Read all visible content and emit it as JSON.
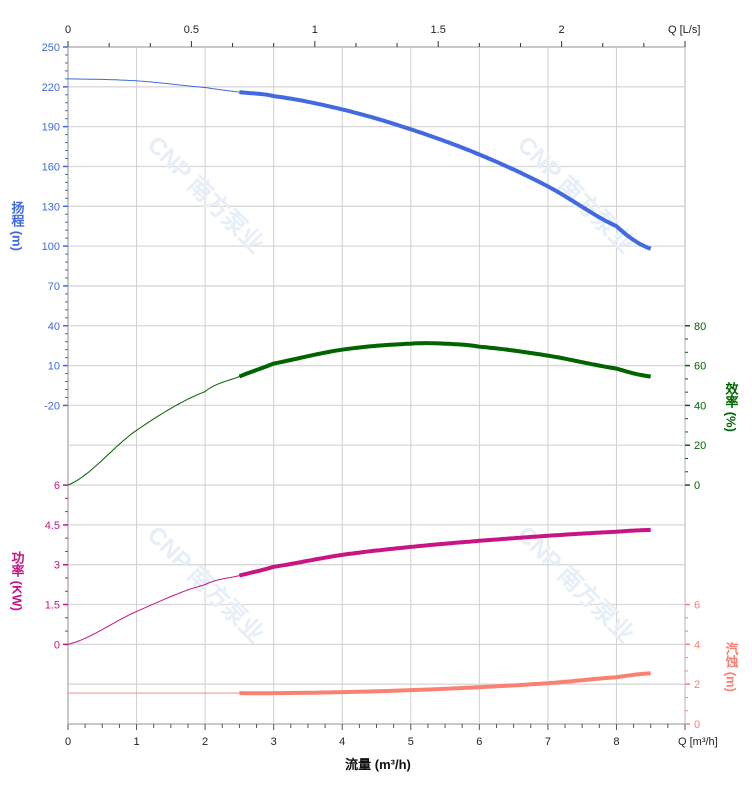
{
  "chart_data": {
    "type": "line",
    "title": "",
    "watermark": "CNP 南方泵业",
    "x": {
      "label": "流量 (m³/h)",
      "unit_label": "Q [m³/h]",
      "range": [
        0,
        9
      ],
      "ticks": [
        0,
        1,
        2,
        3,
        4,
        5,
        6,
        7,
        8
      ]
    },
    "x_top": {
      "unit_label": "Q [L/s]",
      "range": [
        0,
        2.5
      ],
      "ticks": [
        0,
        0.5,
        1,
        1.5,
        2
      ]
    },
    "grid": true,
    "axes": {
      "head": {
        "label": "扬程 (m)",
        "color": "#4169e1",
        "side": "left",
        "ticks": [
          250,
          220,
          190,
          160,
          130,
          100,
          70,
          40,
          10,
          -20
        ]
      },
      "power": {
        "label": "功率 (KW)",
        "color": "#c71585",
        "side": "left",
        "ticks": [
          6,
          4.5,
          3,
          1.5,
          0
        ]
      },
      "efficiency": {
        "label": "效率 (%)",
        "color": "#006400",
        "side": "right",
        "ticks": [
          80,
          60,
          40,
          20,
          0
        ]
      },
      "npsh": {
        "label": "汽蚀 (m)",
        "color": "#fa8072",
        "side": "right",
        "ticks": [
          6,
          4,
          2,
          0
        ]
      }
    },
    "operating_range": [
      2.5,
      8.5
    ],
    "series": [
      {
        "axis": "head",
        "x": [
          0,
          1,
          2,
          2.5,
          3,
          4,
          5,
          6,
          7,
          8,
          8.5
        ],
        "y": [
          226,
          224.5,
          219.5,
          216,
          213,
          203,
          188,
          169,
          145,
          115,
          98
        ]
      },
      {
        "axis": "efficiency",
        "x": [
          0,
          1,
          2,
          2.5,
          3,
          4,
          5,
          5.5,
          6,
          7,
          8,
          8.5
        ],
        "y": [
          0,
          27.5,
          47,
          54.5,
          61,
          68,
          71,
          71,
          69.5,
          65,
          58.5,
          54.5
        ]
      },
      {
        "axis": "power",
        "x": [
          0,
          1,
          2,
          2.5,
          3,
          4,
          5,
          6,
          7,
          8,
          8.5
        ],
        "y": [
          0,
          1.24,
          2.25,
          2.59,
          2.92,
          3.37,
          3.67,
          3.9,
          4.09,
          4.24,
          4.31
        ]
      },
      {
        "axis": "npsh",
        "x": [
          0,
          1,
          2,
          2.5,
          3,
          4,
          5,
          6,
          7,
          8,
          8.5
        ],
        "y": [
          1.55,
          1.55,
          1.55,
          1.55,
          1.55,
          1.6,
          1.7,
          1.85,
          2.05,
          2.35,
          2.55
        ]
      }
    ]
  }
}
